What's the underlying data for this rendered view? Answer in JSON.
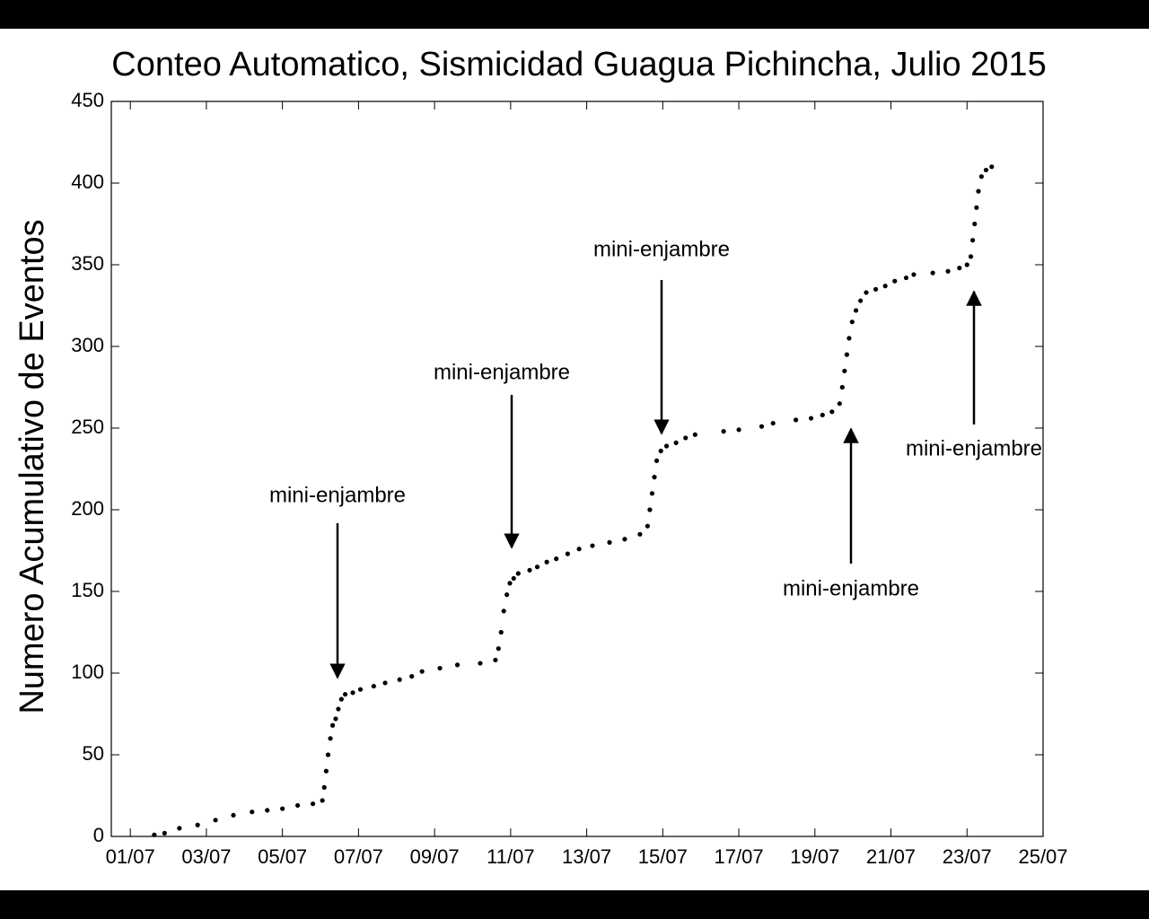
{
  "chart_data": {
    "type": "scatter",
    "title": "Conteo Automatico, Sismicidad Guagua Pichincha, Julio 2015",
    "ylabel": "Numero Acumulativo de Eventos",
    "color": "#000000",
    "x": [
      1.63,
      1.9,
      2.29,
      2.77,
      3.24,
      3.71,
      4.2,
      4.6,
      5.0,
      5.4,
      5.8,
      6.05,
      6.1,
      6.15,
      6.2,
      6.26,
      6.32,
      6.4,
      6.47,
      6.55,
      6.65,
      6.85,
      7.05,
      7.4,
      7.7,
      8.08,
      8.4,
      8.67,
      9.14,
      9.6,
      10.2,
      10.6,
      10.68,
      10.75,
      10.82,
      10.9,
      10.98,
      11.08,
      11.2,
      11.5,
      11.7,
      11.95,
      12.2,
      12.5,
      12.8,
      13.15,
      13.6,
      14.0,
      14.4,
      14.6,
      14.66,
      14.72,
      14.78,
      14.84,
      14.95,
      15.1,
      15.35,
      15.6,
      15.85,
      16.6,
      17.0,
      17.6,
      17.9,
      18.5,
      18.9,
      19.2,
      19.45,
      19.65,
      19.72,
      19.78,
      19.84,
      19.9,
      19.98,
      20.08,
      20.2,
      20.35,
      20.6,
      20.85,
      21.1,
      21.4,
      21.6,
      22.1,
      22.5,
      22.8,
      23.0,
      23.1,
      23.15,
      23.2,
      23.25,
      23.3,
      23.38,
      23.5,
      23.65
    ],
    "values": [
      1,
      2,
      5,
      7,
      10,
      13,
      15,
      16,
      17,
      19,
      20,
      22,
      30,
      40,
      50,
      60,
      68,
      72,
      78,
      84,
      87,
      88,
      90,
      92,
      94,
      96,
      98,
      101,
      103,
      105,
      106,
      108,
      115,
      125,
      138,
      148,
      155,
      158,
      161,
      163,
      165,
      168,
      170,
      173,
      176,
      178,
      180,
      182,
      185,
      190,
      200,
      210,
      220,
      230,
      236,
      239,
      241,
      244,
      246,
      248,
      249,
      251,
      253,
      255,
      256,
      258,
      260,
      265,
      275,
      285,
      295,
      305,
      315,
      322,
      328,
      333,
      335,
      337,
      340,
      342,
      344,
      345,
      346,
      348,
      350,
      355,
      365,
      375,
      385,
      395,
      404,
      408,
      410
    ],
    "xlim": [
      0.5,
      25
    ],
    "ylim": [
      0,
      450
    ],
    "xticks": [
      {
        "value": 1,
        "label": "01/07"
      },
      {
        "value": 3,
        "label": "03/07"
      },
      {
        "value": 5,
        "label": "05/07"
      },
      {
        "value": 7,
        "label": "07/07"
      },
      {
        "value": 9,
        "label": "09/07"
      },
      {
        "value": 11,
        "label": "11/07"
      },
      {
        "value": 13,
        "label": "13/07"
      },
      {
        "value": 15,
        "label": "15/07"
      },
      {
        "value": 17,
        "label": "17/07"
      },
      {
        "value": 19,
        "label": "19/07"
      },
      {
        "value": 21,
        "label": "21/07"
      },
      {
        "value": 23,
        "label": "23/07"
      },
      {
        "value": 25,
        "label": "25/07"
      }
    ],
    "yticks": [
      0,
      50,
      100,
      150,
      200,
      250,
      300,
      350,
      400,
      450
    ],
    "annotations": [
      "mini-enjambre",
      "mini-enjambre",
      "mini-enjambre",
      "mini-enjambre",
      "mini-enjambre"
    ]
  }
}
